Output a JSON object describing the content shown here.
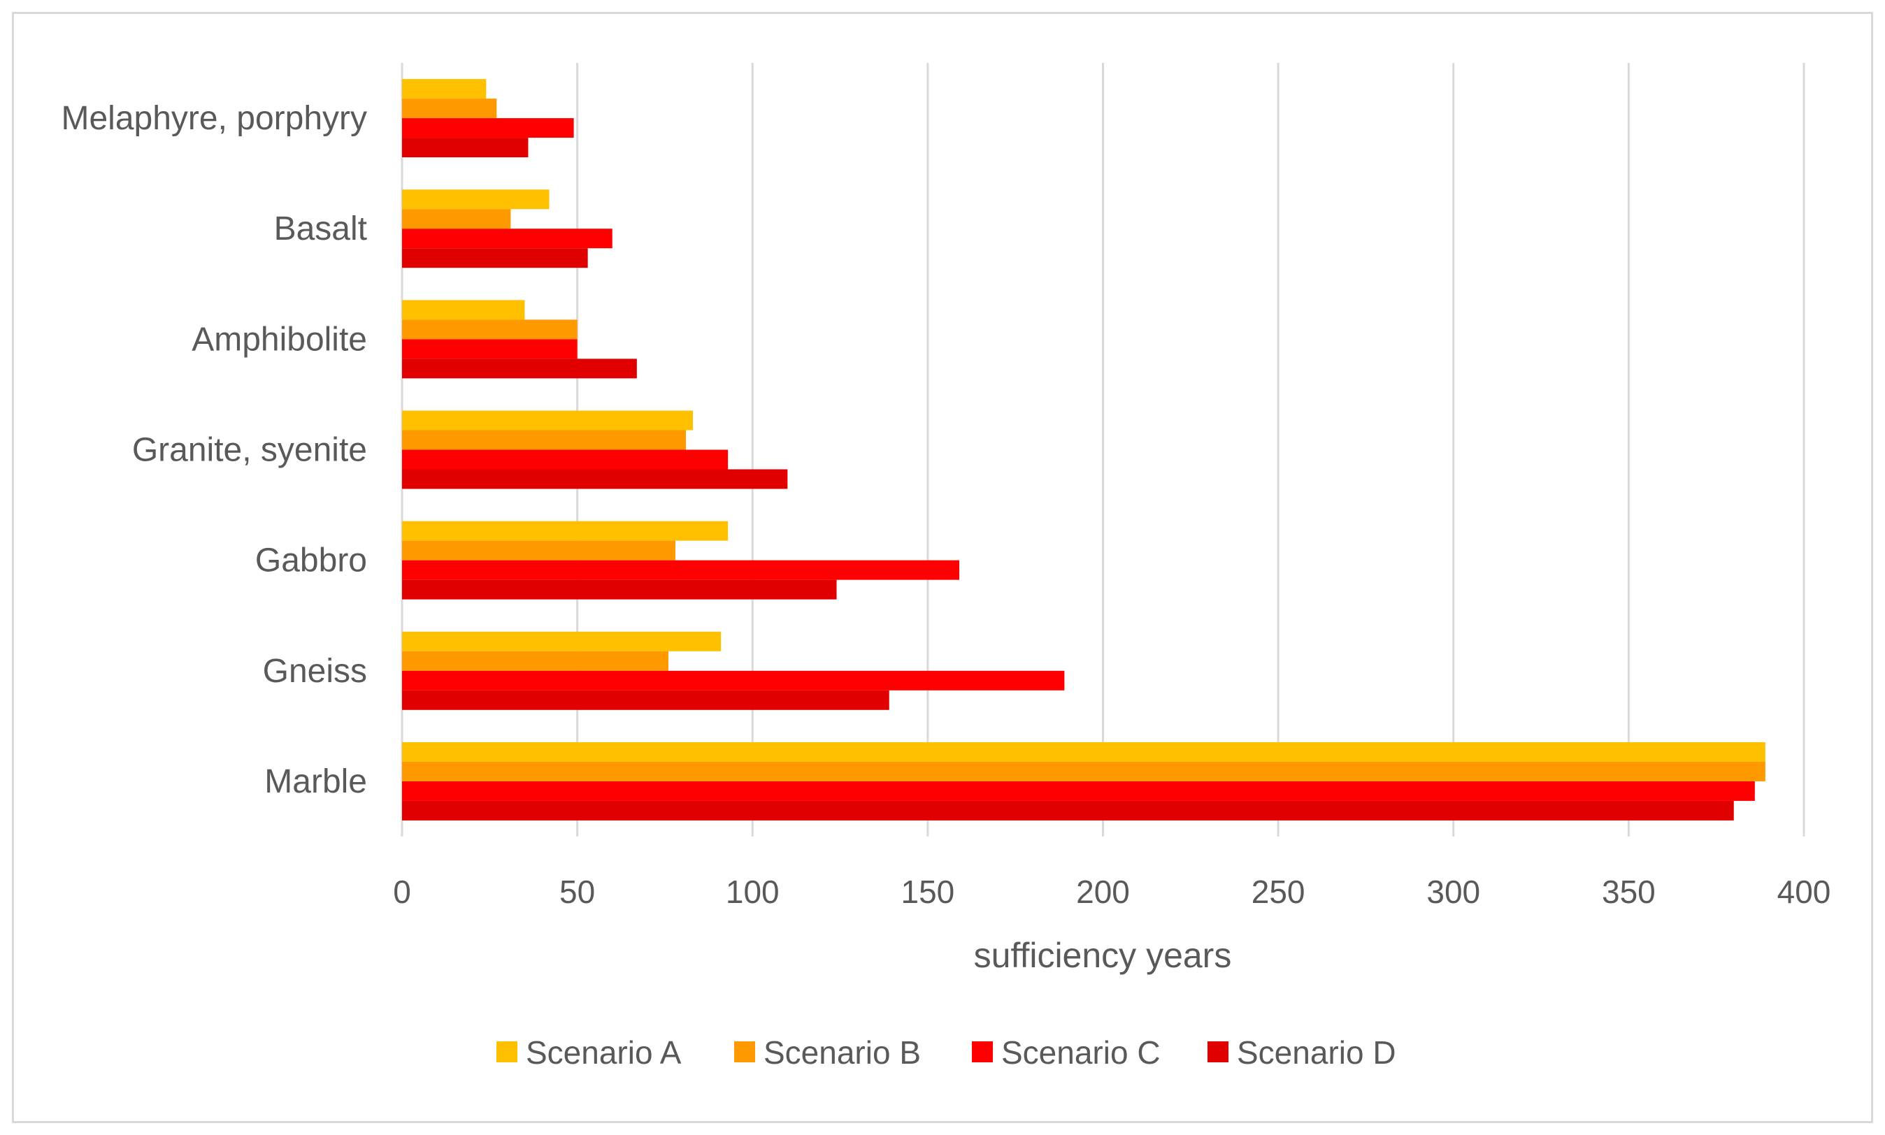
{
  "chart_data": {
    "type": "bar",
    "orientation": "horizontal",
    "title": "",
    "xlabel": "sufficiency years",
    "ylabel": "",
    "xlim": [
      0,
      400
    ],
    "xticks": [
      0,
      50,
      100,
      150,
      200,
      250,
      300,
      350,
      400
    ],
    "grid": true,
    "legend_position": "bottom",
    "categories": [
      "Melaphyre, porphyry",
      "Basalt",
      "Amphibolite",
      "Granite, syenite",
      "Gabbro",
      "Gneiss",
      "Marble"
    ],
    "series": [
      {
        "name": "Scenario A",
        "color": "#ffc000",
        "values": [
          24,
          42,
          35,
          83,
          93,
          91,
          389
        ]
      },
      {
        "name": "Scenario B",
        "color": "#ff9900",
        "values": [
          27,
          31,
          50,
          81,
          78,
          76,
          389
        ]
      },
      {
        "name": "Scenario C",
        "color": "#ff0000",
        "values": [
          49,
          60,
          50,
          93,
          159,
          189,
          386
        ]
      },
      {
        "name": "Scenario D",
        "color": "#e00000",
        "values": [
          36,
          53,
          67,
          110,
          124,
          139,
          380
        ]
      }
    ]
  }
}
